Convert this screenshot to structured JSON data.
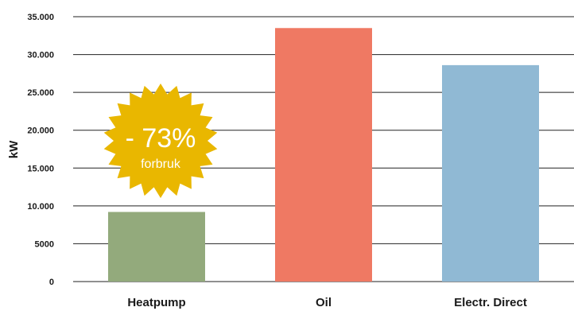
{
  "chart_data": {
    "type": "bar",
    "categories": [
      "Heatpump",
      "Oil",
      "Electr. Direct"
    ],
    "values": [
      9200,
      33500,
      28600
    ],
    "colors": [
      "#93aa7c",
      "#ef7963",
      "#90b9d4"
    ],
    "ylabel": "kW",
    "ylim": [
      0,
      35000
    ],
    "yticks": [
      0,
      5000,
      10000,
      15000,
      20000,
      25000,
      30000,
      35000
    ],
    "ytick_labels": [
      "0",
      "5000",
      "10.000",
      "15.000",
      "20.000",
      "25.000",
      "30.000",
      "35.000"
    ],
    "grid": true,
    "annotation": {
      "percent": "- 73%",
      "caption": "forbruk",
      "color": "#e9b700"
    }
  }
}
